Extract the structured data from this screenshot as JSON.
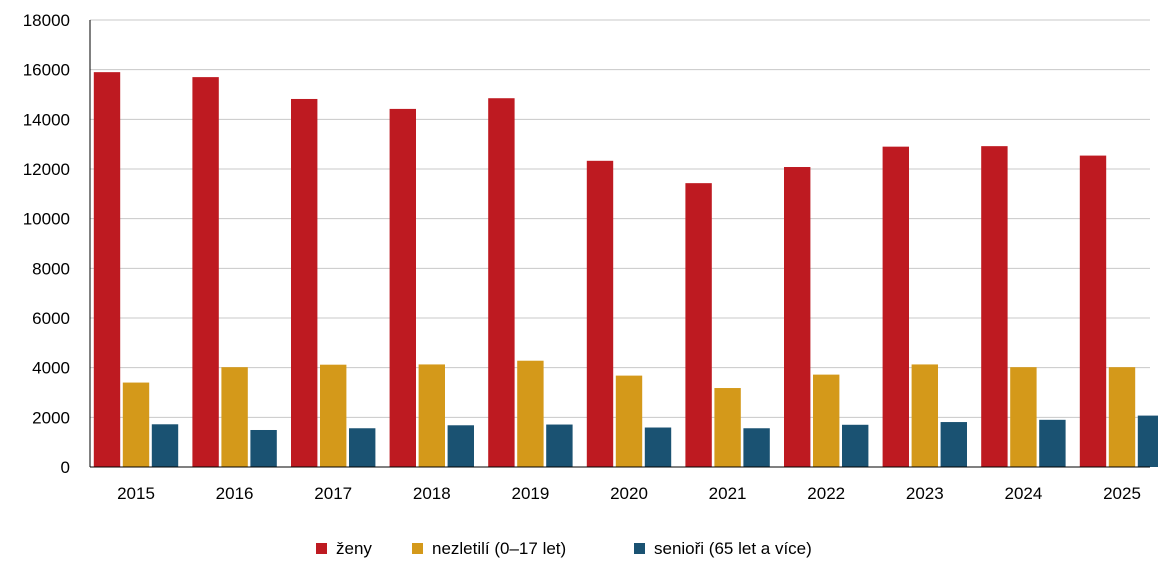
{
  "chart_data": {
    "type": "bar",
    "title": "",
    "xlabel": "",
    "ylabel": "",
    "ylim": [
      0,
      18000
    ],
    "yticks": [
      0,
      2000,
      4000,
      6000,
      8000,
      10000,
      12000,
      14000,
      16000,
      18000
    ],
    "ytick_labels": [
      "0",
      "2000",
      "4000",
      "6000",
      "8000",
      "10000",
      "12000",
      "14000",
      "16000",
      "18000"
    ],
    "grid": true,
    "legend_position": "bottom-center",
    "categories": [
      "2015",
      "2016",
      "2017",
      "2018",
      "2019",
      "2020",
      "2021",
      "2022",
      "2023",
      "2024",
      "2025"
    ],
    "series": [
      {
        "name": "ženy",
        "color": "#be1a21",
        "values": [
          15900,
          15700,
          14820,
          14420,
          14850,
          12330,
          11430,
          12080,
          12900,
          12920,
          12540
        ]
      },
      {
        "name": "nezletilí (0–17 let)",
        "color": "#d4991a",
        "values": [
          3400,
          4020,
          4120,
          4130,
          4280,
          3680,
          3180,
          3720,
          4130,
          4020,
          4020
        ]
      },
      {
        "name": "senioři (65 let a více)",
        "color": "#1a5272",
        "values": [
          1720,
          1490,
          1560,
          1680,
          1710,
          1590,
          1560,
          1700,
          1810,
          1900,
          2070
        ]
      }
    ]
  }
}
